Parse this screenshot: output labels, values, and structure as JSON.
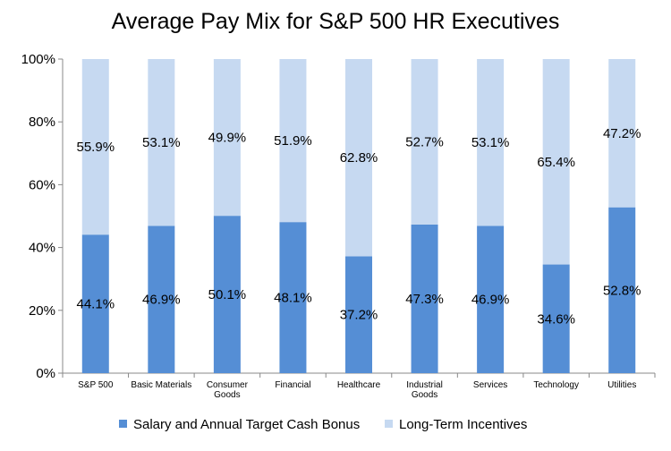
{
  "chart_data": {
    "type": "bar",
    "stacked": true,
    "title": "Average Pay Mix for S&P 500 HR Executives",
    "categories": [
      [
        "S&P 500"
      ],
      [
        "Basic Materials"
      ],
      [
        "Consumer",
        "Goods"
      ],
      [
        "Financial"
      ],
      [
        "Healthcare"
      ],
      [
        "Industrial",
        "Goods"
      ],
      [
        "Services"
      ],
      [
        "Technology"
      ],
      [
        "Utilities"
      ]
    ],
    "series": [
      {
        "name": "Salary and Annual Target Cash Bonus",
        "color": "#558ed5",
        "values": [
          44.1,
          46.9,
          50.1,
          48.1,
          37.2,
          47.3,
          46.9,
          34.6,
          52.8
        ],
        "labels": [
          "44.1%",
          "46.9%",
          "50.1%",
          "48.1%",
          "37.2%",
          "47.3%",
          "46.9%",
          "34.6%",
          "52.8%"
        ]
      },
      {
        "name": "Long-Term Incentives",
        "color": "#c6d9f1",
        "values": [
          55.9,
          53.1,
          49.9,
          51.9,
          62.8,
          52.7,
          53.1,
          65.4,
          47.2
        ],
        "labels": [
          "55.9%",
          "53.1%",
          "49.9%",
          "51.9%",
          "62.8%",
          "52.7%",
          "53.1%",
          "65.4%",
          "47.2%"
        ]
      }
    ],
    "ylim": [
      0,
      100
    ],
    "yticks": [
      "0%",
      "20%",
      "40%",
      "60%",
      "80%",
      "100%"
    ],
    "grid": false,
    "legend_position": "bottom"
  }
}
